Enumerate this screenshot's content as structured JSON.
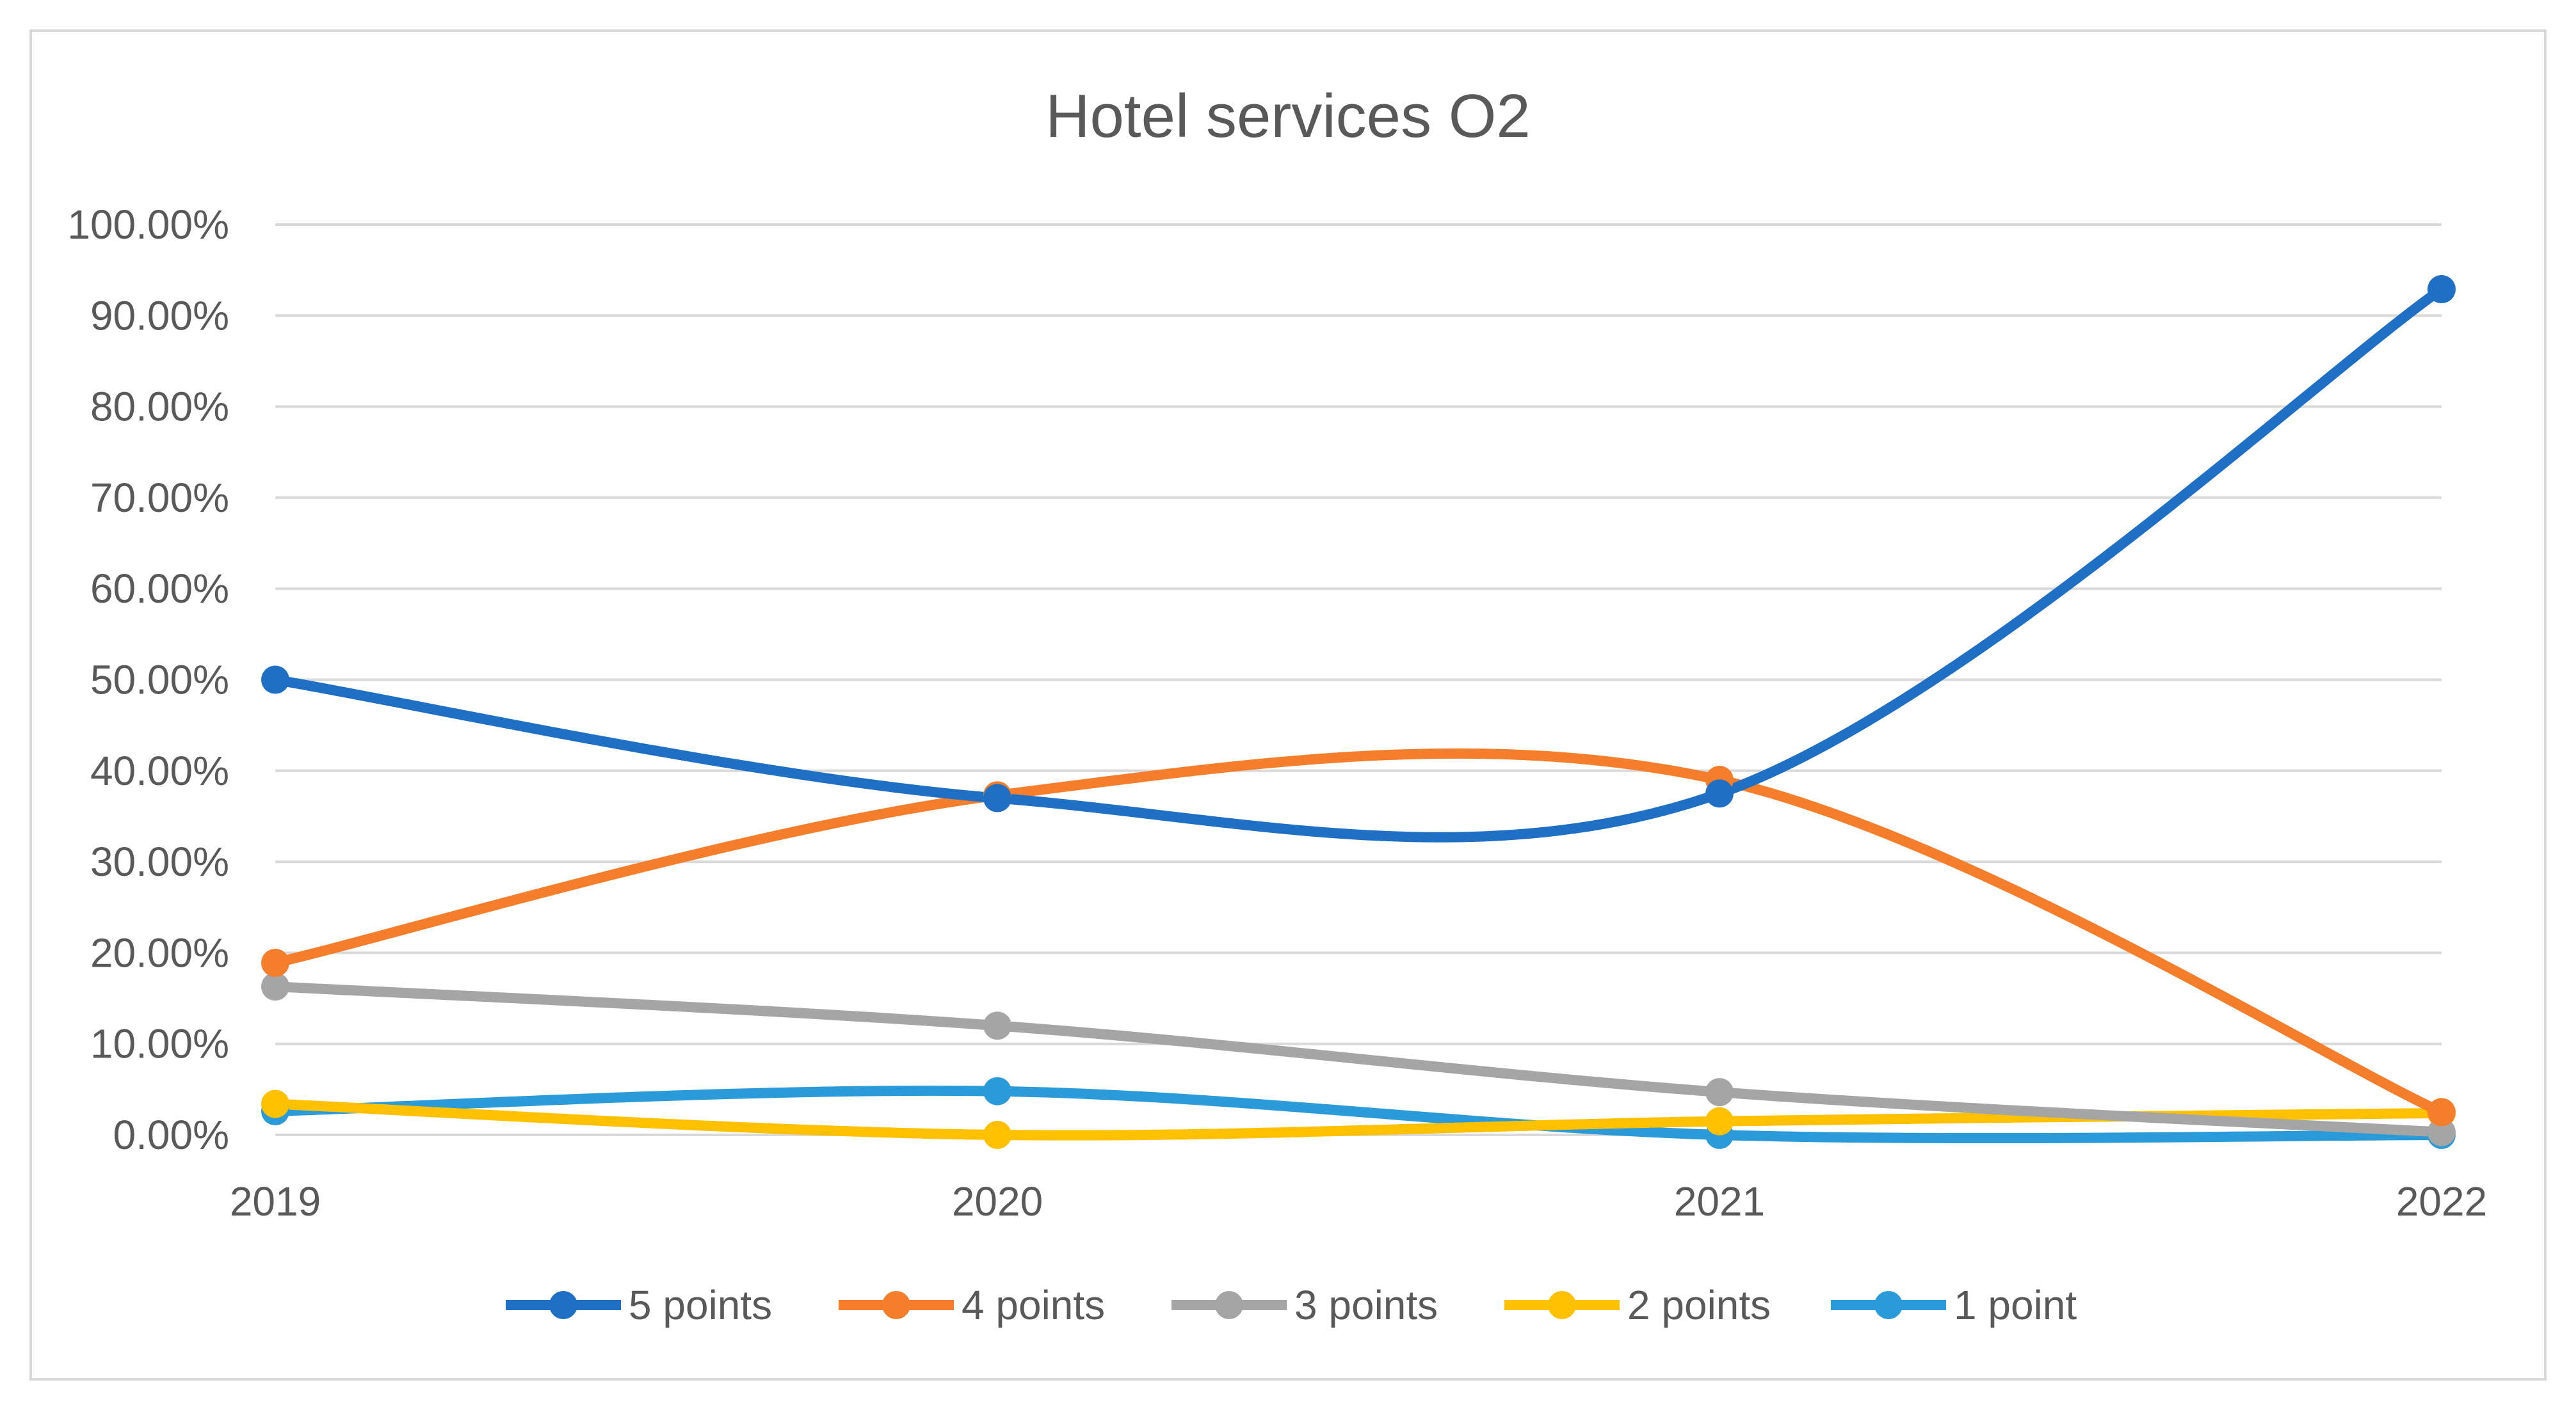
{
  "chart_data": {
    "type": "line",
    "title": "Hotel services O2",
    "xlabel": "",
    "ylabel": "",
    "categories": [
      "2019",
      "2020",
      "2021",
      "2022"
    ],
    "ylim": [
      0,
      100
    ],
    "y_ticks": [
      "0.00%",
      "10.00%",
      "20.00%",
      "30.00%",
      "40.00%",
      "50.00%",
      "60.00%",
      "70.00%",
      "80.00%",
      "90.00%",
      "100.00%"
    ],
    "y_unit": "%",
    "grid": true,
    "smooth": true,
    "legend_position": "bottom",
    "series": [
      {
        "name": "5 points",
        "color": "#1f6fc5",
        "values": [
          50.0,
          37.0,
          37.5,
          92.9
        ]
      },
      {
        "name": "4 points",
        "color": "#f47e2c",
        "values": [
          18.9,
          37.3,
          39.0,
          2.5
        ]
      },
      {
        "name": "3 points",
        "color": "#a5a5a5",
        "values": [
          16.3,
          12.0,
          4.7,
          0.3
        ]
      },
      {
        "name": "2 points",
        "color": "#ffc000",
        "values": [
          3.4,
          0.0,
          1.5,
          2.4
        ]
      },
      {
        "name": "1 point",
        "color": "#2b9ad8",
        "values": [
          2.6,
          4.8,
          0.0,
          0.0
        ]
      }
    ]
  }
}
